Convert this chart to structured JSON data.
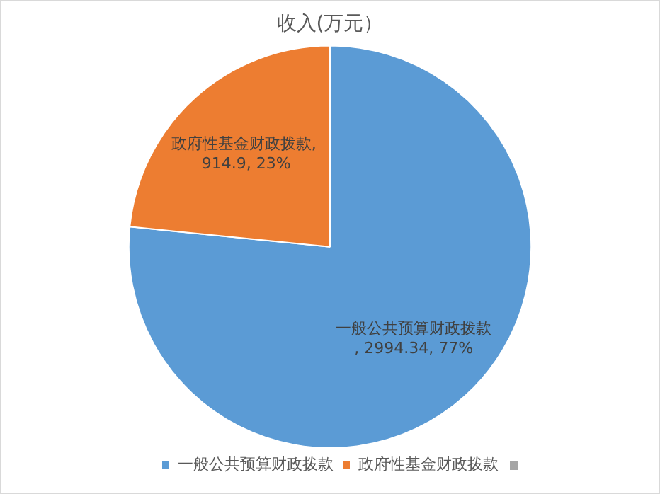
{
  "chart_data": {
    "type": "pie",
    "title": "收入(万元）",
    "categories": [
      "一般公共预算财政拨款",
      "政府性基金财政拨款"
    ],
    "values": [
      2994.34,
      914.9
    ],
    "colors": [
      "#5b9bd5",
      "#ed7d31"
    ],
    "value_labels": [
      "一般公共预算财政拨款, 2994.34, 77%",
      "政府性基金财政拨款, 914.9, 23%"
    ],
    "legend": "bottom"
  }
}
